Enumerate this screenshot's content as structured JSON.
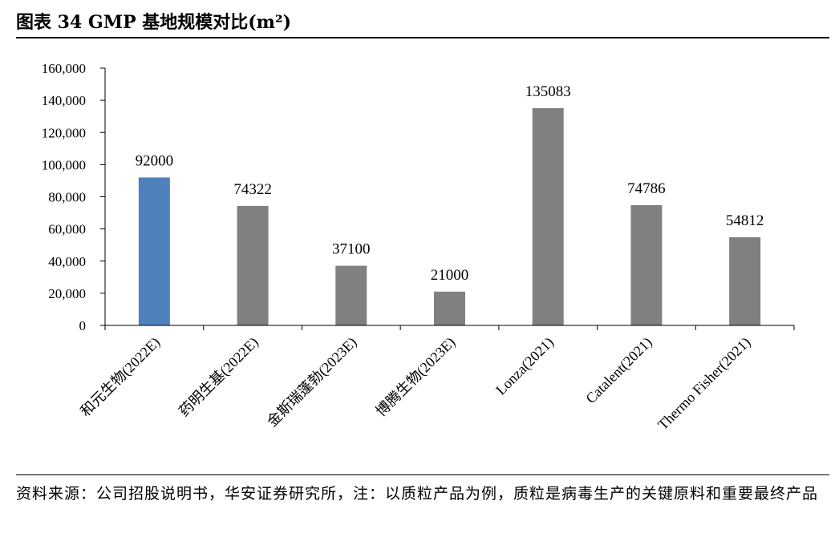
{
  "header": {
    "title": "图表 34   GMP 基地规模对比(m²)"
  },
  "chart_data": {
    "type": "bar",
    "title": "GMP 基地规模对比(m²)",
    "xlabel": "",
    "ylabel": "",
    "categories": [
      "和元生物(2022E)",
      "药明生基(2022E)",
      "金斯瑞蓬勃(2023E)",
      "博腾生物(2023E)",
      "Lonza(2021)",
      "Catalent(2021)",
      "Thermo Fisher(2021)"
    ],
    "values": [
      92000,
      74322,
      37100,
      21000,
      135083,
      74786,
      54812
    ],
    "data_labels": [
      "92000",
      "74322",
      "37100",
      "21000",
      "135083",
      "74786",
      "54812"
    ],
    "ylim": [
      0,
      160000
    ],
    "yticks": [
      0,
      20000,
      40000,
      60000,
      80000,
      100000,
      120000,
      140000,
      160000
    ],
    "ytick_labels": [
      "0",
      "20,000",
      "40,000",
      "60,000",
      "80,000",
      "100,000",
      "120,000",
      "140,000",
      "160,000"
    ],
    "grid": false,
    "legend": "none",
    "colors": [
      "#4f81bd",
      "#808080",
      "#808080",
      "#808080",
      "#808080",
      "#808080",
      "#808080"
    ]
  },
  "footer": {
    "source": "资料来源：公司招股说明书，华安证券研究所，注：以质粒产品为例，质粒是病毒生产的关键原料和重要最终产品"
  }
}
